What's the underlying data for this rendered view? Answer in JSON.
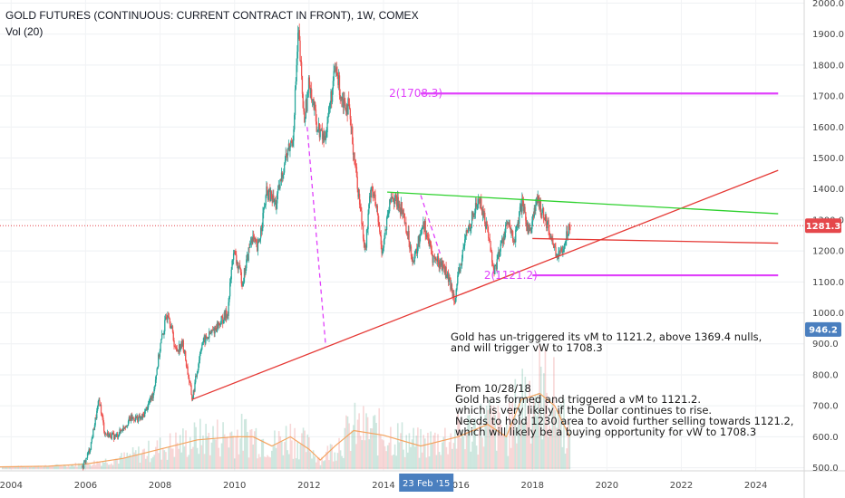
{
  "header": {
    "title": "GOLD FUTURES (CONTINUOUS: CURRENT CONTRACT IN FRONT), 1W, COMEX",
    "vol_label": "Vol (20)"
  },
  "price_badges": {
    "last": "1281.3",
    "volume": "946.2",
    "last_color": "#e5474b",
    "volume_color": "#4a7fbf"
  },
  "crosshair_date": "23 Feb '15",
  "chart_data": {
    "type": "line",
    "title": "GOLD FUTURES (CONTINUOUS: CURRENT CONTRACT IN FRONT), 1W, COMEX",
    "ylim": [
      490,
      2010
    ],
    "xlim": [
      2003.7,
      2025.3
    ],
    "y_ticks": [
      "2000.0",
      "1900.0",
      "1800.0",
      "1700.0",
      "1600.0",
      "1500.0",
      "1400.0",
      "1300.0",
      "1200.0",
      "1100.0",
      "1000.0",
      "900.0",
      "800.0",
      "700.0",
      "600.0",
      "500.0"
    ],
    "x_ticks": [
      "2004",
      "2006",
      "2008",
      "2010",
      "2012",
      "2014",
      "2016",
      "2018",
      "2020",
      "2022",
      "2024"
    ],
    "price_path": [
      [
        2005.9,
        500
      ],
      [
        2006.1,
        560
      ],
      [
        2006.35,
        720
      ],
      [
        2006.5,
        610
      ],
      [
        2006.8,
        600
      ],
      [
        2007.2,
        660
      ],
      [
        2007.5,
        660
      ],
      [
        2007.8,
        740
      ],
      [
        2008.0,
        900
      ],
      [
        2008.2,
        1010
      ],
      [
        2008.4,
        880
      ],
      [
        2008.6,
        900
      ],
      [
        2008.85,
        720
      ],
      [
        2009.1,
        900
      ],
      [
        2009.4,
        940
      ],
      [
        2009.8,
        1000
      ],
      [
        2009.95,
        1200
      ],
      [
        2010.2,
        1100
      ],
      [
        2010.45,
        1250
      ],
      [
        2010.6,
        1200
      ],
      [
        2010.85,
        1390
      ],
      [
        2011.1,
        1350
      ],
      [
        2011.35,
        1500
      ],
      [
        2011.55,
        1560
      ],
      [
        2011.7,
        1910
      ],
      [
        2011.85,
        1620
      ],
      [
        2012.0,
        1750
      ],
      [
        2012.2,
        1600
      ],
      [
        2012.4,
        1560
      ],
      [
        2012.7,
        1790
      ],
      [
        2012.85,
        1700
      ],
      [
        2013.05,
        1660
      ],
      [
        2013.3,
        1400
      ],
      [
        2013.5,
        1200
      ],
      [
        2013.65,
        1420
      ],
      [
        2013.8,
        1330
      ],
      [
        2013.95,
        1200
      ],
      [
        2014.2,
        1380
      ],
      [
        2014.5,
        1330
      ],
      [
        2014.8,
        1160
      ],
      [
        2015.05,
        1300
      ],
      [
        2015.3,
        1180
      ],
      [
        2015.6,
        1150
      ],
      [
        2015.9,
        1050
      ],
      [
        2016.2,
        1250
      ],
      [
        2016.55,
        1370
      ],
      [
        2016.8,
        1260
      ],
      [
        2016.95,
        1130
      ],
      [
        2017.3,
        1290
      ],
      [
        2017.5,
        1230
      ],
      [
        2017.7,
        1350
      ],
      [
        2017.9,
        1260
      ],
      [
        2018.1,
        1360
      ],
      [
        2018.3,
        1320
      ],
      [
        2018.6,
        1200
      ],
      [
        2018.7,
        1180
      ],
      [
        2018.9,
        1250
      ],
      [
        2019.0,
        1290
      ]
    ],
    "volume": {
      "ma_path": [
        [
          2003.7,
          503
        ],
        [
          2005.0,
          505
        ],
        [
          2006.0,
          512
        ],
        [
          2007.0,
          530
        ],
        [
          2008.0,
          560
        ],
        [
          2009.0,
          590
        ],
        [
          2010.0,
          600
        ],
        [
          2010.5,
          600
        ],
        [
          2011.0,
          570
        ],
        [
          2011.5,
          600
        ],
        [
          2012.0,
          560
        ],
        [
          2012.3,
          525
        ],
        [
          2012.7,
          570
        ],
        [
          2013.2,
          620
        ],
        [
          2014.0,
          605
        ],
        [
          2015.0,
          570
        ],
        [
          2016.0,
          600
        ],
        [
          2016.8,
          640
        ],
        [
          2017.3,
          600
        ],
        [
          2017.7,
          720
        ],
        [
          2018.2,
          740
        ],
        [
          2018.6,
          700
        ],
        [
          2019.0,
          600
        ]
      ]
    },
    "lines": [
      {
        "name": "rising-support-line",
        "color": "#e53935",
        "points": [
          [
            2008.85,
            720
          ],
          [
            2024.6,
            1460
          ]
        ]
      },
      {
        "name": "descending-resistance-line",
        "color": "#2ed12e",
        "points": [
          [
            2014.1,
            1390
          ],
          [
            2024.6,
            1320
          ]
        ]
      },
      {
        "name": "horizontal-support-red",
        "color": "#e53935",
        "points": [
          [
            2018.0,
            1240
          ],
          [
            2024.6,
            1225
          ]
        ]
      },
      {
        "name": "vm-target-line",
        "color": "#e040fb",
        "points": [
          [
            2018.0,
            1121.2
          ],
          [
            2024.6,
            1121.2
          ]
        ]
      },
      {
        "name": "vw-target-line",
        "color": "#e040fb",
        "points": [
          [
            2015.0,
            1708.3
          ],
          [
            2024.6,
            1708.3
          ]
        ]
      }
    ],
    "dashed_lines": [
      {
        "name": "dashed-drop-a",
        "color": "#e040fb",
        "points": [
          [
            2011.95,
            1600
          ],
          [
            2012.45,
            890
          ]
        ]
      },
      {
        "name": "dashed-drop-b",
        "color": "#e040fb",
        "points": [
          [
            2015.0,
            1380
          ],
          [
            2015.55,
            1180
          ]
        ]
      }
    ],
    "annotations": [
      {
        "text": "2(1708.3)",
        "x": 2014.15,
        "y": 1708.3,
        "color": "#e040fb"
      },
      {
        "text": "2(1121.2)",
        "x": 2016.7,
        "y": 1121.2,
        "color": "#e040fb"
      }
    ]
  },
  "notes": {
    "note1": "Gold has un-triggered its vM to 1121.2, above 1369.4 nulls,\nand will trigger vW to 1708.3",
    "note2": "From 10/28/18\nGold has formed and triggered a vM to 1121.2.\nwhich is very likely if the Dollar continues to rise.\nNeeds to hold 1230 area to avoid further selling towards 1121.2,\nwhich will likely be a buying opportunity for vW to 1708.3"
  }
}
